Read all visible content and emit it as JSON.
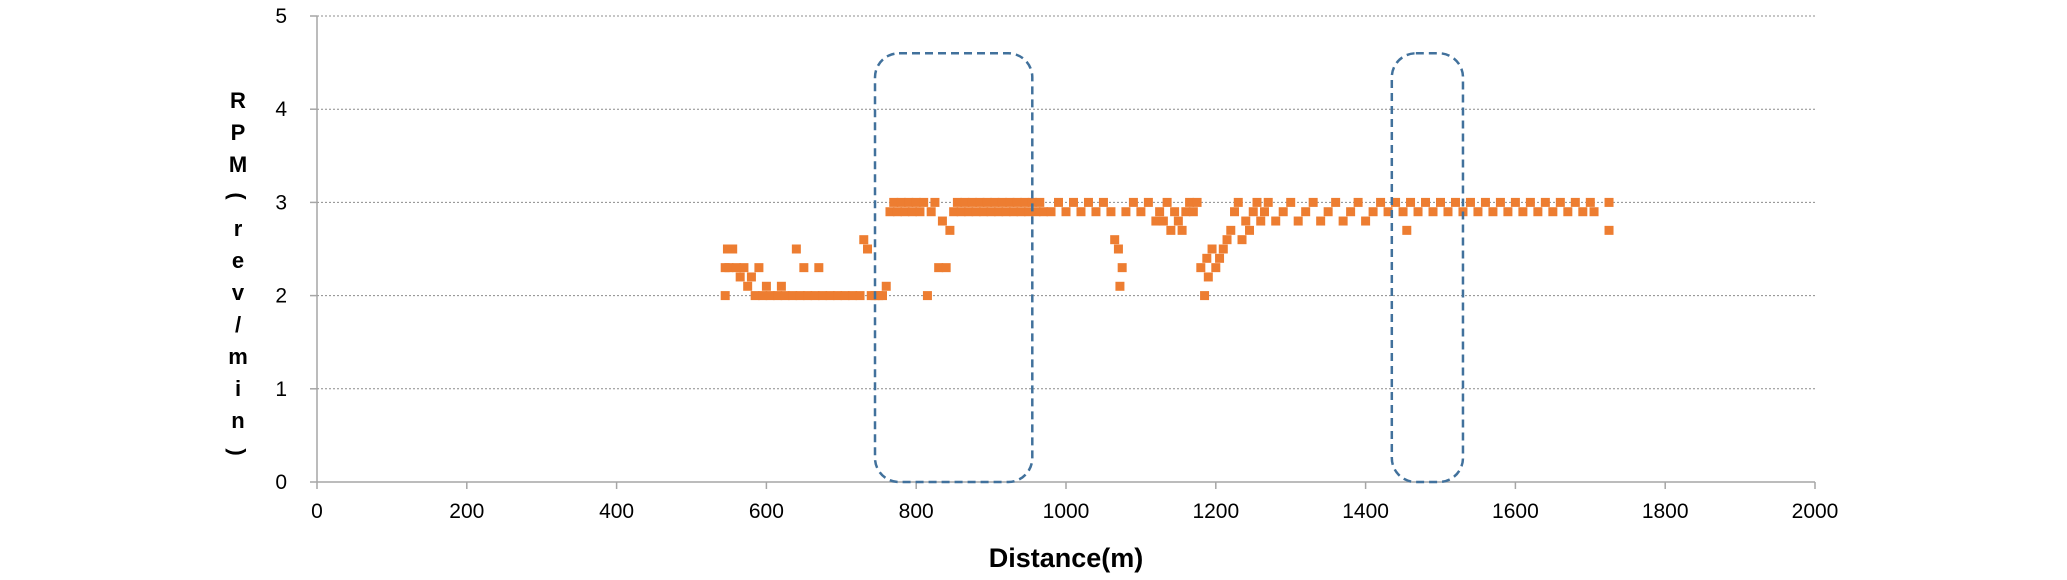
{
  "chart_data": {
    "type": "scatter",
    "title": "",
    "xlabel": "Distance(m)",
    "ylabel": "RPM(rev/min)",
    "xlim": [
      0,
      2000
    ],
    "ylim": [
      0,
      5
    ],
    "x_ticks": [
      0,
      200,
      400,
      600,
      800,
      1000,
      1200,
      1400,
      1600,
      1800,
      2000
    ],
    "y_ticks": [
      0,
      1,
      2,
      3,
      4,
      5
    ],
    "grid": "horizontal-dashed",
    "colors": {
      "points": "#ED7D31",
      "highlight": "#41719C",
      "grid": "#8C8C8C",
      "axis": "#A6A6A6"
    },
    "highlight_regions": [
      {
        "x_range": [
          745,
          955
        ],
        "y_range": [
          0,
          4.6
        ]
      },
      {
        "x_range": [
          1435,
          1530
        ],
        "y_range": [
          0,
          4.6
        ]
      }
    ],
    "series": [
      {
        "points": [
          [
            545,
            2.3
          ],
          [
            550,
            2.3
          ],
          [
            555,
            2.5
          ],
          [
            560,
            2.3
          ],
          [
            565,
            2.2
          ],
          [
            570,
            2.3
          ],
          [
            575,
            2.1
          ],
          [
            580,
            2.2
          ],
          [
            585,
            2.0
          ],
          [
            590,
            2.3
          ],
          [
            595,
            2.0
          ],
          [
            600,
            2.1
          ],
          [
            605,
            2.0
          ],
          [
            615,
            2.0
          ],
          [
            620,
            2.1
          ],
          [
            625,
            2.0
          ],
          [
            635,
            2.0
          ],
          [
            640,
            2.5
          ],
          [
            645,
            2.0
          ],
          [
            650,
            2.3
          ],
          [
            655,
            2.0
          ],
          [
            665,
            2.0
          ],
          [
            670,
            2.3
          ],
          [
            675,
            2.0
          ],
          [
            685,
            2.0
          ],
          [
            695,
            2.0
          ],
          [
            705,
            2.0
          ],
          [
            715,
            2.0
          ],
          [
            725,
            2.0
          ],
          [
            730,
            2.6
          ],
          [
            735,
            2.5
          ],
          [
            740,
            2.0
          ],
          [
            745,
            2.0
          ],
          [
            750,
            2.0
          ],
          [
            755,
            2.0
          ],
          [
            760,
            2.1
          ],
          [
            545,
            2.0
          ],
          [
            548,
            2.5
          ],
          [
            765,
            2.9
          ],
          [
            770,
            3.0
          ],
          [
            775,
            2.9
          ],
          [
            780,
            3.0
          ],
          [
            785,
            2.9
          ],
          [
            790,
            3.0
          ],
          [
            795,
            2.9
          ],
          [
            800,
            3.0
          ],
          [
            805,
            2.9
          ],
          [
            810,
            3.0
          ],
          [
            815,
            2.0
          ],
          [
            820,
            2.9
          ],
          [
            825,
            3.0
          ],
          [
            830,
            2.3
          ],
          [
            835,
            2.8
          ],
          [
            840,
            2.3
          ],
          [
            845,
            2.7
          ],
          [
            850,
            2.9
          ],
          [
            855,
            3.0
          ],
          [
            860,
            2.9
          ],
          [
            865,
            3.0
          ],
          [
            870,
            2.9
          ],
          [
            875,
            3.0
          ],
          [
            880,
            2.9
          ],
          [
            885,
            3.0
          ],
          [
            890,
            2.9
          ],
          [
            895,
            3.0
          ],
          [
            900,
            2.9
          ],
          [
            905,
            3.0
          ],
          [
            910,
            2.9
          ],
          [
            915,
            3.0
          ],
          [
            920,
            2.9
          ],
          [
            925,
            3.0
          ],
          [
            930,
            2.9
          ],
          [
            935,
            3.0
          ],
          [
            940,
            2.9
          ],
          [
            945,
            3.0
          ],
          [
            950,
            2.9
          ],
          [
            955,
            3.0
          ],
          [
            960,
            2.9
          ],
          [
            965,
            3.0
          ],
          [
            970,
            2.9
          ],
          [
            980,
            2.9
          ],
          [
            990,
            3.0
          ],
          [
            1000,
            2.9
          ],
          [
            1010,
            3.0
          ],
          [
            1020,
            2.9
          ],
          [
            1030,
            3.0
          ],
          [
            1040,
            2.9
          ],
          [
            1050,
            3.0
          ],
          [
            1060,
            2.9
          ],
          [
            1065,
            2.6
          ],
          [
            1070,
            2.5
          ],
          [
            1072,
            2.1
          ],
          [
            1075,
            2.3
          ],
          [
            1080,
            2.9
          ],
          [
            1090,
            3.0
          ],
          [
            1100,
            2.9
          ],
          [
            1110,
            3.0
          ],
          [
            1120,
            2.8
          ],
          [
            1125,
            2.9
          ],
          [
            1130,
            2.8
          ],
          [
            1135,
            3.0
          ],
          [
            1140,
            2.7
          ],
          [
            1145,
            2.9
          ],
          [
            1150,
            2.8
          ],
          [
            1155,
            2.7
          ],
          [
            1160,
            2.9
          ],
          [
            1165,
            3.0
          ],
          [
            1170,
            2.9
          ],
          [
            1175,
            3.0
          ],
          [
            1180,
            2.3
          ],
          [
            1185,
            2.0
          ],
          [
            1188,
            2.4
          ],
          [
            1190,
            2.2
          ],
          [
            1195,
            2.5
          ],
          [
            1200,
            2.3
          ],
          [
            1205,
            2.4
          ],
          [
            1210,
            2.5
          ],
          [
            1215,
            2.6
          ],
          [
            1220,
            2.7
          ],
          [
            1225,
            2.9
          ],
          [
            1230,
            3.0
          ],
          [
            1235,
            2.6
          ],
          [
            1240,
            2.8
          ],
          [
            1245,
            2.7
          ],
          [
            1250,
            2.9
          ],
          [
            1255,
            3.0
          ],
          [
            1260,
            2.8
          ],
          [
            1265,
            2.9
          ],
          [
            1270,
            3.0
          ],
          [
            1280,
            2.8
          ],
          [
            1290,
            2.9
          ],
          [
            1300,
            3.0
          ],
          [
            1310,
            2.8
          ],
          [
            1320,
            2.9
          ],
          [
            1330,
            3.0
          ],
          [
            1340,
            2.8
          ],
          [
            1350,
            2.9
          ],
          [
            1360,
            3.0
          ],
          [
            1370,
            2.8
          ],
          [
            1380,
            2.9
          ],
          [
            1390,
            3.0
          ],
          [
            1400,
            2.8
          ],
          [
            1410,
            2.9
          ],
          [
            1420,
            3.0
          ],
          [
            1430,
            2.9
          ],
          [
            1440,
            3.0
          ],
          [
            1450,
            2.9
          ],
          [
            1455,
            2.7
          ],
          [
            1460,
            3.0
          ],
          [
            1470,
            2.9
          ],
          [
            1480,
            3.0
          ],
          [
            1490,
            2.9
          ],
          [
            1500,
            3.0
          ],
          [
            1510,
            2.9
          ],
          [
            1520,
            3.0
          ],
          [
            1530,
            2.9
          ],
          [
            1540,
            3.0
          ],
          [
            1550,
            2.9
          ],
          [
            1560,
            3.0
          ],
          [
            1570,
            2.9
          ],
          [
            1580,
            3.0
          ],
          [
            1590,
            2.9
          ],
          [
            1600,
            3.0
          ],
          [
            1610,
            2.9
          ],
          [
            1620,
            3.0
          ],
          [
            1630,
            2.9
          ],
          [
            1640,
            3.0
          ],
          [
            1650,
            2.9
          ],
          [
            1660,
            3.0
          ],
          [
            1670,
            2.9
          ],
          [
            1680,
            3.0
          ],
          [
            1690,
            2.9
          ],
          [
            1700,
            3.0
          ],
          [
            1705,
            2.9
          ],
          [
            1725,
            3.0
          ],
          [
            1725,
            2.7
          ]
        ]
      }
    ]
  }
}
